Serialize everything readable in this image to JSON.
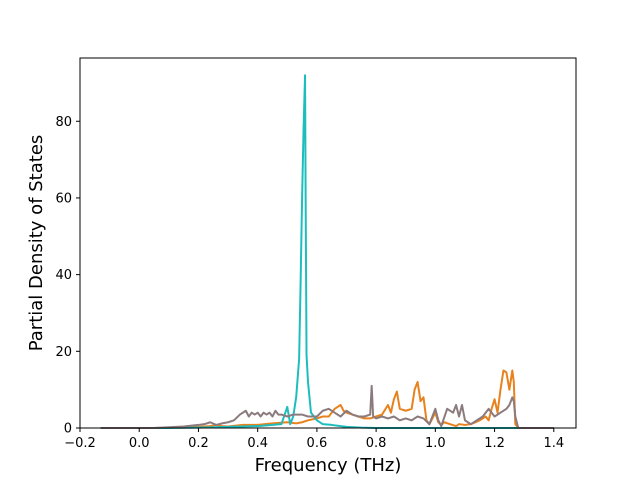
{
  "chart_data": {
    "type": "line",
    "title": "",
    "xlabel": "Frequency (THz)",
    "ylabel": "Partial Density of States",
    "xlim": [
      -0.2,
      1.475
    ],
    "ylim": [
      0,
      96.5
    ],
    "xticks": [
      -0.2,
      0.0,
      0.2,
      0.4,
      0.6,
      0.8,
      1.0,
      1.2,
      1.4
    ],
    "xtick_labels": [
      "−0.2",
      "0.0",
      "0.2",
      "0.4",
      "0.6",
      "0.8",
      "1.0",
      "1.2",
      "1.4"
    ],
    "yticks": [
      0,
      20,
      40,
      60,
      80
    ],
    "ytick_labels": [
      "0",
      "20",
      "40",
      "60",
      "80"
    ],
    "grid": false,
    "legend": "none",
    "series": [
      {
        "color": "#e8821e",
        "x": [
          -0.13,
          0.05,
          0.1,
          0.15,
          0.2,
          0.24,
          0.26,
          0.28,
          0.3,
          0.35,
          0.4,
          0.45,
          0.5,
          0.53,
          0.55,
          0.57,
          0.6,
          0.62,
          0.64,
          0.66,
          0.68,
          0.69,
          0.7,
          0.72,
          0.74,
          0.76,
          0.78,
          0.8,
          0.82,
          0.84,
          0.85,
          0.86,
          0.87,
          0.88,
          0.9,
          0.92,
          0.93,
          0.94,
          0.95,
          0.96,
          0.97,
          0.98,
          1.0,
          1.01,
          1.02,
          1.03,
          1.05,
          1.07,
          1.08,
          1.1,
          1.12,
          1.15,
          1.17,
          1.18,
          1.19,
          1.2,
          1.21,
          1.22,
          1.23,
          1.24,
          1.25,
          1.26,
          1.265,
          1.27,
          1.28,
          1.4
        ],
        "y": [
          0,
          0,
          0.1,
          0.2,
          0.3,
          0.5,
          0.8,
          0.5,
          0.4,
          0.8,
          0.8,
          1.2,
          1.5,
          1.2,
          1.5,
          2.0,
          2.5,
          3.0,
          3.0,
          5.0,
          6.0,
          4.5,
          4.0,
          3.5,
          3.0,
          2.5,
          2.5,
          3.0,
          3.5,
          6.0,
          4.0,
          7.5,
          9.5,
          5.0,
          4.5,
          5.0,
          10.0,
          12.0,
          7.0,
          8.0,
          2.0,
          1.0,
          4.0,
          1.5,
          0.8,
          1.5,
          1.0,
          0.5,
          1.0,
          0.8,
          1.0,
          2.0,
          3.0,
          2.0,
          5.0,
          7.5,
          4.0,
          10.0,
          15.0,
          14.5,
          10.0,
          15.0,
          12.0,
          1.0,
          0,
          0
        ]
      },
      {
        "color": "#1ebdbd",
        "x": [
          -0.13,
          0.1,
          0.2,
          0.3,
          0.4,
          0.45,
          0.48,
          0.5,
          0.51,
          0.52,
          0.53,
          0.54,
          0.545,
          0.55,
          0.555,
          0.56,
          0.562,
          0.565,
          0.57,
          0.58,
          0.6,
          0.62,
          0.65,
          0.7,
          0.75,
          0.8,
          1.0,
          1.2,
          1.3,
          1.4
        ],
        "y": [
          0,
          0,
          0.1,
          0.3,
          0.5,
          0.8,
          1.0,
          5.5,
          1.0,
          3.0,
          8.0,
          18.0,
          38.0,
          60.0,
          78.0,
          92.0,
          60.0,
          19.0,
          12.0,
          4.0,
          2.0,
          1.0,
          0.8,
          0.3,
          0.1,
          0,
          0,
          0,
          0,
          0
        ]
      },
      {
        "color": "#8c7b7e",
        "x": [
          -0.13,
          0.05,
          0.1,
          0.15,
          0.2,
          0.22,
          0.24,
          0.26,
          0.28,
          0.3,
          0.32,
          0.34,
          0.36,
          0.37,
          0.38,
          0.39,
          0.4,
          0.41,
          0.42,
          0.43,
          0.44,
          0.45,
          0.46,
          0.47,
          0.48,
          0.5,
          0.52,
          0.55,
          0.57,
          0.6,
          0.62,
          0.64,
          0.66,
          0.68,
          0.7,
          0.72,
          0.74,
          0.76,
          0.78,
          0.785,
          0.79,
          0.8,
          0.82,
          0.84,
          0.86,
          0.88,
          0.9,
          0.92,
          0.94,
          0.96,
          0.98,
          1.0,
          1.01,
          1.02,
          1.04,
          1.06,
          1.07,
          1.08,
          1.09,
          1.1,
          1.12,
          1.14,
          1.16,
          1.18,
          1.2,
          1.22,
          1.24,
          1.25,
          1.26,
          1.265,
          1.27,
          1.28,
          1.4
        ],
        "y": [
          0,
          0,
          0.2,
          0.4,
          0.8,
          1.0,
          1.5,
          0.8,
          1.2,
          1.5,
          2.0,
          3.5,
          4.5,
          3.0,
          4.0,
          3.5,
          4.0,
          3.0,
          4.0,
          3.5,
          4.0,
          3.0,
          4.5,
          3.5,
          3.5,
          3.0,
          3.5,
          3.5,
          3.0,
          3.0,
          4.5,
          5.0,
          4.0,
          3.0,
          4.5,
          3.5,
          3.0,
          3.0,
          3.5,
          11.0,
          3.0,
          2.5,
          3.0,
          2.5,
          3.0,
          2.0,
          2.5,
          2.0,
          3.0,
          2.5,
          1.0,
          5.0,
          2.0,
          0.5,
          5.0,
          4.0,
          6.0,
          3.0,
          6.0,
          2.0,
          1.0,
          2.0,
          3.0,
          5.0,
          3.0,
          4.0,
          5.0,
          6.0,
          8.0,
          7.0,
          3.0,
          0,
          0
        ]
      }
    ]
  }
}
